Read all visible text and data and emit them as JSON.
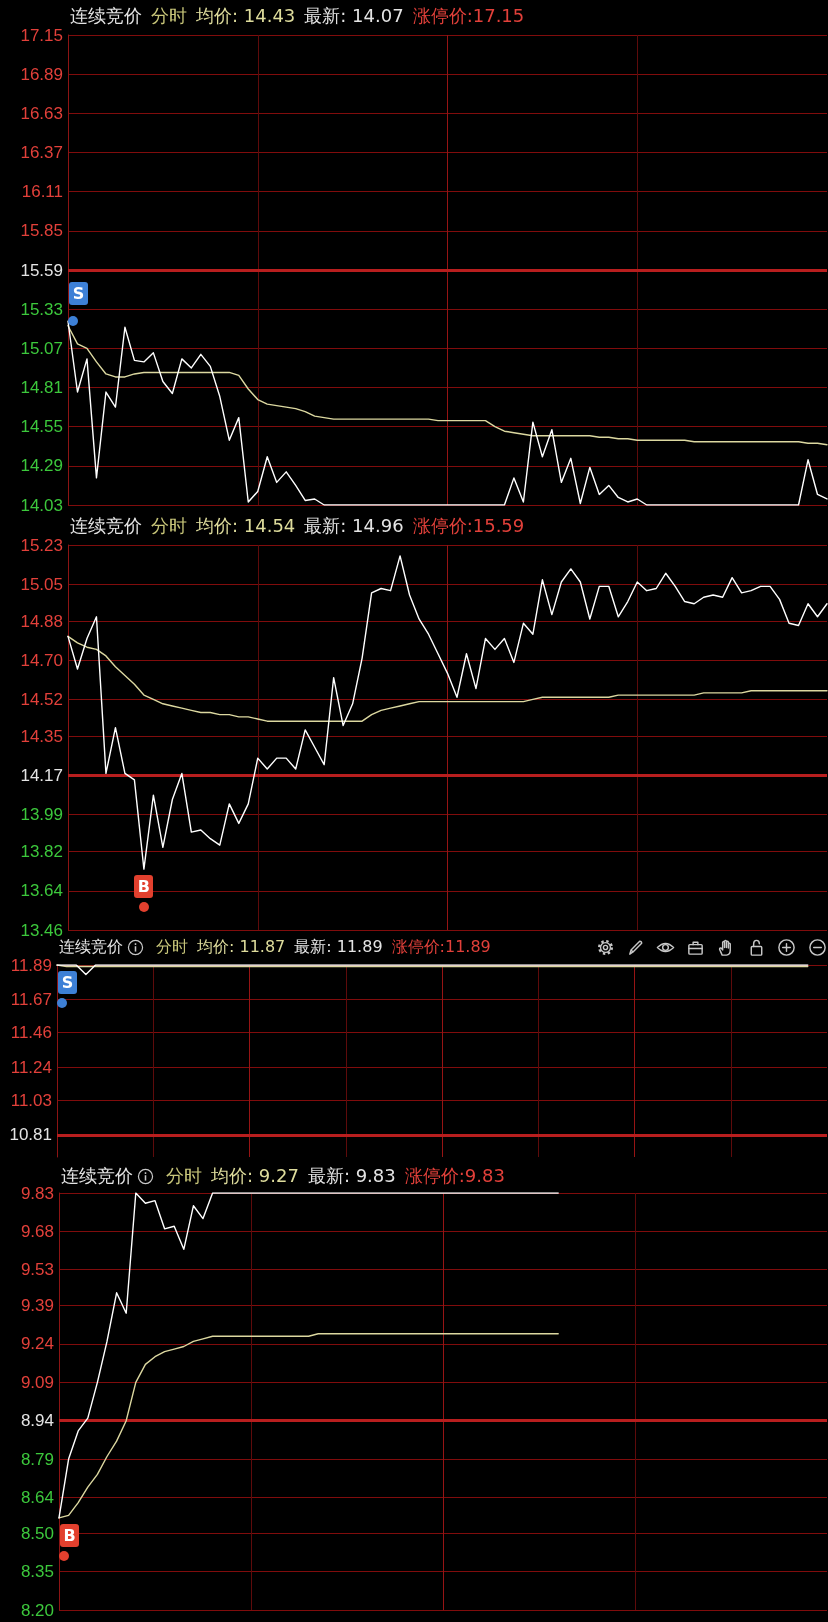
{
  "chart_data": [
    {
      "type": "line",
      "title": "连续竞价",
      "annotations": [
        "分时",
        "均价: 14.43",
        "最新: 14.07",
        "涨停价:17.15",
        "S"
      ],
      "categories": [
        null,
        null,
        null,
        null,
        null,
        null,
        null,
        null,
        null,
        null,
        null,
        null,
        null,
        null,
        null,
        null,
        null,
        null,
        null,
        null,
        null,
        null,
        null,
        null,
        null,
        null,
        null,
        null,
        null,
        null,
        null,
        null,
        null,
        null,
        null,
        null,
        null,
        null,
        null,
        null,
        null,
        null,
        null,
        null,
        null,
        null,
        null,
        null,
        null,
        null,
        null,
        null,
        null,
        null,
        null,
        null,
        null,
        null,
        null,
        null,
        null,
        null,
        null,
        null,
        null,
        null,
        null,
        null,
        null,
        null,
        null,
        null,
        null,
        null,
        null,
        null,
        null,
        null,
        null,
        null,
        null
      ],
      "series": [
        {
          "color": "#ffffff",
          "values": [
            15.25,
            14.78,
            15.0,
            14.21,
            14.78,
            14.68,
            15.21,
            14.99,
            14.98,
            15.04,
            14.85,
            14.77,
            15.0,
            14.94,
            15.03,
            14.95,
            14.75,
            14.46,
            14.61,
            14.05,
            14.12,
            14.35,
            14.18,
            14.25,
            14.16,
            14.06,
            14.07,
            14.03,
            14.03,
            14.03,
            14.03,
            14.03,
            14.03,
            14.03,
            14.03,
            14.03,
            14.03,
            14.03,
            14.03,
            14.03,
            14.03,
            14.03,
            14.03,
            14.03,
            14.03,
            14.03,
            14.03,
            14.21,
            14.05,
            14.58,
            14.35,
            14.53,
            14.18,
            14.34,
            14.04,
            14.28,
            14.1,
            14.16,
            14.08,
            14.05,
            14.07,
            14.03,
            14.03,
            14.03,
            14.03,
            14.03,
            14.03,
            14.03,
            14.03,
            14.03,
            14.03,
            14.03,
            14.03,
            14.03,
            14.03,
            14.03,
            14.03,
            14.03,
            14.33,
            14.1,
            14.07
          ]
        },
        {
          "color": "#dcd8a0",
          "values": [
            15.22,
            15.1,
            15.07,
            14.98,
            14.9,
            14.88,
            14.88,
            14.9,
            14.91,
            14.91,
            14.91,
            14.91,
            14.91,
            14.91,
            14.91,
            14.91,
            14.91,
            14.91,
            14.89,
            14.8,
            14.73,
            14.7,
            14.69,
            14.68,
            14.67,
            14.65,
            14.62,
            14.61,
            14.6,
            14.6,
            14.6,
            14.6,
            14.6,
            14.6,
            14.6,
            14.6,
            14.6,
            14.6,
            14.6,
            14.59,
            14.59,
            14.59,
            14.59,
            14.59,
            14.59,
            14.55,
            14.52,
            14.51,
            14.5,
            14.49,
            14.49,
            14.49,
            14.49,
            14.49,
            14.49,
            14.49,
            14.48,
            14.48,
            14.47,
            14.47,
            14.46,
            14.46,
            14.46,
            14.46,
            14.46,
            14.46,
            14.45,
            14.45,
            14.45,
            14.45,
            14.45,
            14.45,
            14.45,
            14.45,
            14.45,
            14.45,
            14.45,
            14.45,
            14.44,
            14.44,
            14.43
          ]
        }
      ],
      "ylim": [
        14.03,
        17.15
      ],
      "yticks": [
        14.03,
        14.29,
        14.55,
        14.81,
        15.07,
        15.33,
        15.59,
        15.85,
        16.11,
        16.37,
        16.63,
        16.89,
        17.15
      ],
      "ref_lines": [
        {
          "axis": "y",
          "value": 15.59,
          "color": "#b81e1e"
        }
      ],
      "grid": true,
      "tick_labels": "y",
      "marker": "none",
      "line_style": "solid"
    },
    {
      "type": "line",
      "title": "连续竞价",
      "annotations": [
        "分时",
        "均价: 14.54",
        "最新: 14.96",
        "涨停价:15.59",
        "B"
      ],
      "categories": [
        null,
        null,
        null,
        null,
        null,
        null,
        null,
        null,
        null,
        null,
        null,
        null,
        null,
        null,
        null,
        null,
        null,
        null,
        null,
        null,
        null,
        null,
        null,
        null,
        null,
        null,
        null,
        null,
        null,
        null,
        null,
        null,
        null,
        null,
        null,
        null,
        null,
        null,
        null,
        null,
        null,
        null,
        null,
        null,
        null,
        null,
        null,
        null,
        null,
        null,
        null,
        null,
        null,
        null,
        null,
        null,
        null,
        null,
        null,
        null,
        null,
        null,
        null,
        null,
        null,
        null,
        null,
        null,
        null,
        null,
        null,
        null,
        null,
        null,
        null,
        null,
        null,
        null,
        null,
        null,
        null
      ],
      "series": [
        {
          "color": "#ffffff",
          "values": [
            14.81,
            14.66,
            14.8,
            14.9,
            14.18,
            14.39,
            14.18,
            14.15,
            13.74,
            14.08,
            13.84,
            14.06,
            14.18,
            13.91,
            13.92,
            13.88,
            13.85,
            14.04,
            13.95,
            14.04,
            14.25,
            14.2,
            14.25,
            14.25,
            14.2,
            14.38,
            14.3,
            14.22,
            14.62,
            14.4,
            14.5,
            14.71,
            15.01,
            15.03,
            15.02,
            15.18,
            15.0,
            14.89,
            14.82,
            14.73,
            14.64,
            14.53,
            14.73,
            14.57,
            14.8,
            14.75,
            14.8,
            14.69,
            14.87,
            14.82,
            15.07,
            14.91,
            15.06,
            15.12,
            15.06,
            14.89,
            15.04,
            15.04,
            14.9,
            14.97,
            15.06,
            15.02,
            15.03,
            15.1,
            15.04,
            14.97,
            14.96,
            14.99,
            15.0,
            14.99,
            15.08,
            15.01,
            15.02,
            15.04,
            15.04,
            14.98,
            14.87,
            14.86,
            14.96,
            14.9,
            14.96
          ]
        },
        {
          "color": "#dcd8a0",
          "values": [
            14.81,
            14.78,
            14.76,
            14.75,
            14.72,
            14.67,
            14.63,
            14.59,
            14.54,
            14.52,
            14.5,
            14.49,
            14.48,
            14.47,
            14.46,
            14.46,
            14.45,
            14.45,
            14.44,
            14.44,
            14.43,
            14.42,
            14.42,
            14.42,
            14.42,
            14.42,
            14.42,
            14.42,
            14.42,
            14.42,
            14.42,
            14.42,
            14.45,
            14.47,
            14.48,
            14.49,
            14.5,
            14.51,
            14.51,
            14.51,
            14.51,
            14.51,
            14.51,
            14.51,
            14.51,
            14.51,
            14.51,
            14.51,
            14.51,
            14.52,
            14.53,
            14.53,
            14.53,
            14.53,
            14.53,
            14.53,
            14.53,
            14.53,
            14.54,
            14.54,
            14.54,
            14.54,
            14.54,
            14.54,
            14.54,
            14.54,
            14.54,
            14.55,
            14.55,
            14.55,
            14.55,
            14.55,
            14.56,
            14.56,
            14.56,
            14.56,
            14.56,
            14.56,
            14.56,
            14.56,
            14.56
          ]
        }
      ],
      "ylim": [
        13.46,
        15.23
      ],
      "yticks": [
        13.46,
        13.64,
        13.82,
        13.99,
        14.17,
        14.35,
        14.52,
        {
          "value": 14.7,
          "label": "14.70"
        },
        14.88,
        15.05,
        15.23
      ],
      "ref_lines": [
        {
          "axis": "y",
          "value": 14.17,
          "color": "#b81e1e"
        }
      ],
      "grid": true,
      "tick_labels": "y",
      "marker": "none",
      "line_style": "solid"
    },
    {
      "type": "line",
      "title": "连续竞价",
      "annotations": [
        "分时",
        "均价: 11.87",
        "最新: 11.89",
        "涨停价:11.89",
        "S"
      ],
      "categories": [
        null,
        null,
        null,
        null,
        null,
        null,
        null,
        null,
        null,
        null,
        null,
        null,
        null,
        null,
        null,
        null,
        null,
        null,
        null,
        null,
        null,
        null,
        null,
        null,
        null,
        null,
        null,
        null,
        null,
        null,
        null,
        null,
        null,
        null,
        null,
        null,
        null,
        null,
        null,
        null,
        null,
        null,
        null,
        null,
        null,
        null,
        null,
        null,
        null,
        null,
        null,
        null,
        null,
        null,
        null,
        null,
        null,
        null,
        null,
        null,
        null,
        null,
        null,
        null,
        null,
        null,
        null,
        null,
        null,
        null,
        null,
        null,
        null,
        null,
        null,
        null,
        null,
        null,
        null,
        null,
        null
      ],
      "series": [
        {
          "color": "#ffffff",
          "values": [
            11.89,
            11.89,
            11.89,
            11.83,
            11.89,
            11.89,
            11.89,
            11.89,
            11.89,
            11.89,
            11.89,
            11.89,
            11.89,
            11.89,
            11.89,
            11.89,
            11.89,
            11.89,
            11.89,
            11.89,
            11.89,
            11.89,
            11.89,
            11.89,
            11.89,
            11.89,
            11.89,
            11.89,
            11.89,
            11.89,
            11.89,
            11.89,
            11.89,
            11.89,
            11.89,
            11.89,
            11.89,
            11.89,
            11.89,
            11.89,
            11.89,
            11.89,
            11.89,
            11.89,
            11.89,
            11.89,
            11.89,
            11.89,
            11.89,
            11.89,
            11.89,
            11.89,
            11.89,
            11.89,
            11.89,
            11.89,
            11.89,
            11.89,
            11.89,
            11.89,
            11.89,
            11.89,
            11.89,
            11.89,
            11.89,
            11.89,
            11.89,
            11.89,
            11.89,
            11.89,
            11.89,
            11.89,
            11.89,
            11.89,
            11.89,
            11.89,
            11.89,
            11.89,
            11.89,
            null,
            null
          ]
        },
        {
          "color": "#dcd8a0",
          "values": [
            11.89,
            11.88,
            11.88,
            11.88,
            11.88,
            11.88,
            11.88,
            11.88,
            11.88,
            11.88,
            11.88,
            11.88,
            11.88,
            11.88,
            11.88,
            11.88,
            11.88,
            11.88,
            11.88,
            11.88,
            11.88,
            11.88,
            11.88,
            11.88,
            11.88,
            11.88,
            11.88,
            11.88,
            11.88,
            11.88,
            11.88,
            11.88,
            11.88,
            11.88,
            11.88,
            11.88,
            11.88,
            11.88,
            11.88,
            11.88,
            11.88,
            11.88,
            11.88,
            11.88,
            11.88,
            11.88,
            11.88,
            11.88,
            11.88,
            11.88,
            11.88,
            11.88,
            11.88,
            11.88,
            11.88,
            11.88,
            11.88,
            11.88,
            11.88,
            11.88,
            11.88,
            11.88,
            11.88,
            11.88,
            11.88,
            11.88,
            11.88,
            11.88,
            11.88,
            11.88,
            11.88,
            11.88,
            11.88,
            11.88,
            11.88,
            11.88,
            11.88,
            11.88,
            11.88,
            null,
            null
          ]
        }
      ],
      "ylim": [
        10.67,
        11.89
      ],
      "yticks": [
        10.81,
        11.03,
        11.24,
        11.46,
        11.67,
        11.89
      ],
      "ref_lines": [
        {
          "axis": "y",
          "value": 10.81,
          "color": "#b81e1e"
        }
      ],
      "grid": true,
      "tick_labels": "y",
      "marker": "none",
      "line_style": "solid"
    },
    {
      "type": "line",
      "title": "连续竞价",
      "annotations": [
        "分时",
        "均价: 9.27",
        "最新: 9.83",
        "涨停价:9.83",
        "B"
      ],
      "categories": [
        null,
        null,
        null,
        null,
        null,
        null,
        null,
        null,
        null,
        null,
        null,
        null,
        null,
        null,
        null,
        null,
        null,
        null,
        null,
        null,
        null,
        null,
        null,
        null,
        null,
        null,
        null,
        null,
        null,
        null,
        null,
        null,
        null,
        null,
        null,
        null,
        null,
        null,
        null,
        null,
        null,
        null,
        null,
        null,
        null,
        null,
        null,
        null,
        null,
        null,
        null,
        null,
        null,
        null,
        null,
        null,
        null,
        null,
        null,
        null,
        null,
        null,
        null,
        null,
        null,
        null,
        null,
        null,
        null,
        null,
        null,
        null,
        null,
        null,
        null,
        null,
        null,
        null,
        null,
        null,
        null
      ],
      "series": [
        {
          "color": "#ffffff",
          "values": [
            8.56,
            8.79,
            8.9,
            8.95,
            9.09,
            9.25,
            9.44,
            9.36,
            9.83,
            9.79,
            9.8,
            9.69,
            9.7,
            9.61,
            9.78,
            9.73,
            9.83,
            9.83,
            9.83,
            9.83,
            9.83,
            9.83,
            9.83,
            9.83,
            9.83,
            9.83,
            9.83,
            9.83,
            9.83,
            9.83,
            9.83,
            9.83,
            9.83,
            9.83,
            9.83,
            9.83,
            9.83,
            9.83,
            9.83,
            9.83,
            9.83,
            9.83,
            9.83,
            9.83,
            9.83,
            9.83,
            9.83,
            9.83,
            9.83,
            9.83,
            9.83,
            9.83,
            9.83,
            null,
            null,
            null,
            null,
            null,
            null,
            null,
            null,
            null,
            null,
            null,
            null,
            null,
            null,
            null,
            null,
            null,
            null,
            null,
            null,
            null,
            null,
            null,
            null,
            null,
            null,
            null,
            null
          ]
        },
        {
          "color": "#dcd8a0",
          "values": [
            8.56,
            8.57,
            8.62,
            8.68,
            8.73,
            8.8,
            8.86,
            8.94,
            9.09,
            9.16,
            9.19,
            9.21,
            9.22,
            9.23,
            9.25,
            9.26,
            9.27,
            9.27,
            9.27,
            9.27,
            9.27,
            9.27,
            9.27,
            9.27,
            9.27,
            9.27,
            9.27,
            9.28,
            9.28,
            9.28,
            9.28,
            9.28,
            9.28,
            9.28,
            9.28,
            9.28,
            9.28,
            9.28,
            9.28,
            9.28,
            9.28,
            9.28,
            9.28,
            9.28,
            9.28,
            9.28,
            9.28,
            9.28,
            9.28,
            9.28,
            9.28,
            9.28,
            9.28,
            null,
            null,
            null,
            null,
            null,
            null,
            null,
            null,
            null,
            null,
            null,
            null,
            null,
            null,
            null,
            null,
            null,
            null,
            null,
            null,
            null,
            null,
            null,
            null,
            null,
            null,
            null,
            null
          ]
        }
      ],
      "ylim": [
        8.2,
        9.83
      ],
      "yticks": [
        {
          "value": 8.2,
          "label": "8.20"
        },
        8.35,
        {
          "value": 8.5,
          "label": "8.50"
        },
        8.64,
        8.79,
        8.94,
        9.09,
        9.24,
        9.39,
        9.53,
        9.68,
        9.83
      ],
      "ref_lines": [
        {
          "axis": "y",
          "value": 8.94,
          "color": "#b81e1e"
        }
      ],
      "grid": true,
      "tick_labels": "y",
      "marker": "none",
      "line_style": "solid"
    }
  ]
}
